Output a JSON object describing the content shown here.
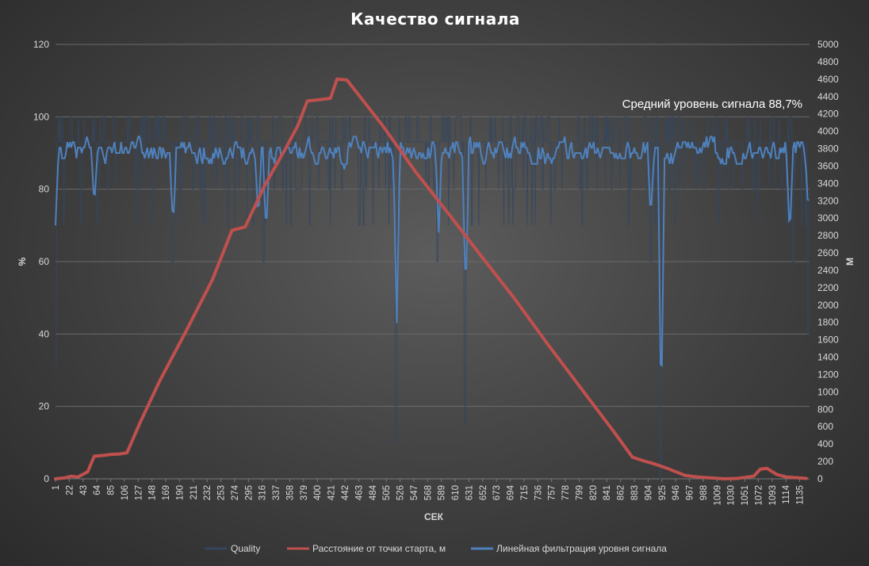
{
  "chart_data": {
    "type": "line",
    "title": "Качество сигнала",
    "xlabel": "СЕК",
    "ylabel_left": "%",
    "ylabel_right": "М",
    "ylim_left": [
      0,
      120
    ],
    "ylim_right": [
      0,
      5000
    ],
    "yticks_left": [
      "0",
      "20",
      "40",
      "60",
      "80",
      "100",
      "120"
    ],
    "yticks_right": [
      "0",
      "200",
      "400",
      "600",
      "800",
      "1000",
      "1200",
      "1400",
      "1600",
      "1800",
      "2000",
      "2200",
      "2400",
      "2600",
      "2800",
      "3000",
      "3200",
      "3400",
      "3600",
      "3800",
      "4000",
      "4200",
      "4400",
      "4600",
      "4800",
      "5000"
    ],
    "xticks": [
      "1",
      "22",
      "43",
      "64",
      "85",
      "106",
      "127",
      "148",
      "169",
      "190",
      "211",
      "232",
      "253",
      "274",
      "295",
      "316",
      "337",
      "358",
      "379",
      "400",
      "421",
      "442",
      "463",
      "484",
      "505",
      "526",
      "547",
      "568",
      "589",
      "610",
      "631",
      "652",
      "673",
      "694",
      "715",
      "736",
      "757",
      "778",
      "799",
      "820",
      "841",
      "862",
      "883",
      "904",
      "925",
      "946",
      "967",
      "988",
      "1009",
      "1030",
      "1051",
      "1072",
      "1093",
      "1114",
      "1135"
    ],
    "xlim": [
      1,
      1150
    ],
    "annotation": "Средний уровень сигнала 88,7%",
    "legend_position": "bottom",
    "series": [
      {
        "name": "Quality",
        "axis": "left",
        "color": "#35475e",
        "style": "raw noisy band between 70 and 100, with dropouts",
        "base_band": [
          70,
          100
        ],
        "dropouts": [
          [
            1,
            30
          ],
          [
            40,
            70
          ],
          [
            65,
            70
          ],
          [
            180,
            60
          ],
          [
            318,
            60
          ],
          [
            520,
            10
          ],
          [
            583,
            60
          ],
          [
            625,
            15
          ],
          [
            908,
            60
          ],
          [
            923,
            0
          ],
          [
            1125,
            60
          ],
          [
            1148,
            40
          ]
        ]
      },
      {
        "name": "Расстояние от точки старта, м",
        "axis": "right",
        "color": "#c0504d",
        "x": [
          1,
          15,
          25,
          35,
          50,
          60,
          75,
          85,
          98,
          110,
          130,
          160,
          200,
          240,
          270,
          280,
          290,
          320,
          350,
          370,
          385,
          400,
          420,
          430,
          445,
          470,
          500,
          550,
          600,
          650,
          700,
          750,
          800,
          850,
          880,
          900,
          910,
          930,
          960,
          980,
          1000,
          1020,
          1040,
          1055,
          1065,
          1075,
          1085,
          1100,
          1115,
          1135,
          1145
        ],
        "values": [
          0,
          10,
          30,
          20,
          80,
          260,
          270,
          280,
          285,
          300,
          650,
          1130,
          1700,
          2290,
          2860,
          2880,
          2900,
          3380,
          3780,
          4060,
          4350,
          4360,
          4380,
          4600,
          4590,
          4350,
          4060,
          3530,
          3050,
          2560,
          2080,
          1560,
          1060,
          560,
          250,
          200,
          180,
          130,
          40,
          20,
          10,
          0,
          5,
          20,
          30,
          110,
          120,
          50,
          20,
          10,
          5
        ]
      },
      {
        "name": "Линейная фильтрация уровня сигнала",
        "axis": "left",
        "color": "#4f81bd",
        "style": "smoothed, oscillating 85-96, with dips",
        "base_band": [
          85,
          96
        ],
        "dips": [
          [
            1,
            70
          ],
          [
            60,
            76
          ],
          [
            180,
            70
          ],
          [
            310,
            72
          ],
          [
            322,
            68
          ],
          [
            521,
            43
          ],
          [
            585,
            68
          ],
          [
            626,
            50
          ],
          [
            908,
            71
          ],
          [
            924,
            17
          ],
          [
            1120,
            67
          ],
          [
            1148,
            74
          ]
        ]
      }
    ]
  }
}
